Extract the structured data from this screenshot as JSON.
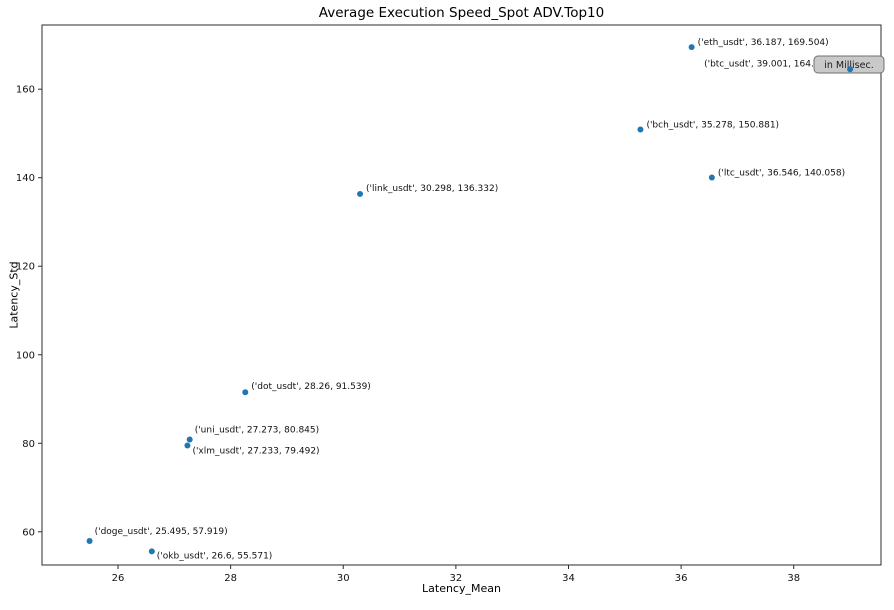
{
  "figure": {
    "title": "Average Execution Speed_Spot ADV.Top10",
    "xlabel": "Latency_Mean",
    "ylabel": "Latency_Std",
    "overlay_note": "in Millisec."
  },
  "chart_data": {
    "type": "scatter",
    "title": "Average Execution Speed_Spot ADV.Top10",
    "xlabel": "Latency_Mean",
    "ylabel": "Latency_Std",
    "xlim": [
      24.65,
      39.55
    ],
    "ylim": [
      52.5,
      174.5
    ],
    "xticks": [
      26,
      28,
      30,
      32,
      34,
      36,
      38
    ],
    "yticks": [
      60,
      80,
      100,
      120,
      140,
      160
    ],
    "grid": false,
    "legend": "none",
    "marker_color": "#1f77b4",
    "units_note": {
      "text": "in Millisec.",
      "fill": "#c9c9c9",
      "border": "#707070"
    },
    "points": [
      {
        "name": "eth_usdt",
        "x": 36.187,
        "y": 169.504,
        "label": "('eth_usdt', 36.187, 169.504)",
        "label_offset": [
          6,
          -2
        ]
      },
      {
        "name": "btc_usdt",
        "x": 39.001,
        "y": 164.5,
        "label": "('btc_usdt', 39.001, 164.5)",
        "label_offset": [
          -146,
          -3
        ]
      },
      {
        "name": "bch_usdt",
        "x": 35.278,
        "y": 150.881,
        "label": "('bch_usdt', 35.278, 150.881)",
        "label_offset": [
          6,
          -2
        ]
      },
      {
        "name": "ltc_usdt",
        "x": 36.546,
        "y": 140.058,
        "label": "('ltc_usdt', 36.546, 140.058)",
        "label_offset": [
          6,
          -2
        ]
      },
      {
        "name": "link_usdt",
        "x": 30.298,
        "y": 136.332,
        "label": "('link_usdt', 30.298, 136.332)",
        "label_offset": [
          6,
          -3
        ]
      },
      {
        "name": "dot_usdt",
        "x": 28.26,
        "y": 91.539,
        "label": "('dot_usdt', 28.26, 91.539)",
        "label_offset": [
          6,
          -3
        ]
      },
      {
        "name": "uni_usdt",
        "x": 27.273,
        "y": 80.845,
        "label": "('uni_usdt', 27.273, 80.845)",
        "label_offset": [
          5,
          -7
        ]
      },
      {
        "name": "xlm_usdt",
        "x": 27.233,
        "y": 79.492,
        "label": "('xlm_usdt', 27.233, 79.492)",
        "label_offset": [
          5,
          8
        ]
      },
      {
        "name": "doge_usdt",
        "x": 25.495,
        "y": 57.919,
        "label": "('doge_usdt', 25.495, 57.919)",
        "label_offset": [
          5,
          -7
        ]
      },
      {
        "name": "okb_usdt",
        "x": 26.6,
        "y": 55.571,
        "label": "('okb_usdt', 26.6, 55.571)",
        "label_offset": [
          5,
          7
        ]
      }
    ]
  }
}
